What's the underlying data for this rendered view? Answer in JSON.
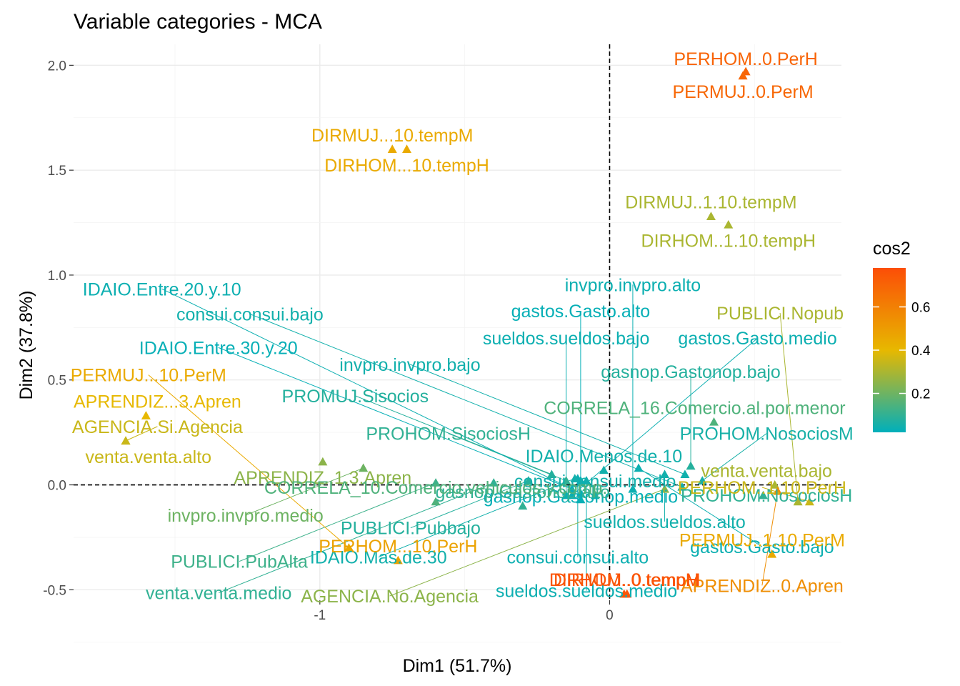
{
  "chart_data": {
    "type": "scatter",
    "title": "Variable categories - MCA",
    "xlabel": "Dim1 (51.7%)",
    "ylabel": "Dim2 (37.8%)",
    "xlim": [
      -1.85,
      0.8
    ],
    "ylim": [
      -0.55,
      2.1
    ],
    "x_ticks": [
      -1,
      0
    ],
    "y_ticks": [
      -0.5,
      0.0,
      0.5,
      1.0,
      1.5,
      2.0
    ],
    "reference_lines": {
      "x": 0,
      "y": 0
    },
    "grid": true,
    "legend": {
      "title": "cos2",
      "placement": "right",
      "range": [
        0.02,
        0.78
      ],
      "ticks": [
        0.2,
        0.4,
        0.6
      ],
      "colors": [
        "#00AFBB",
        "#E7B800",
        "#FC4E07"
      ]
    },
    "points": [
      {
        "label": "PERHOM..0.PerH",
        "x": 0.47,
        "y": 1.97,
        "cos2": 0.7
      },
      {
        "label": "PERMUJ..0.PerM",
        "x": 0.46,
        "y": 1.95,
        "cos2": 0.69
      },
      {
        "label": "DIRMUJ...10.tempM",
        "x": -0.75,
        "y": 1.6,
        "cos2": 0.45
      },
      {
        "label": "DIRHOM...10.tempH",
        "x": -0.7,
        "y": 1.6,
        "cos2": 0.45
      },
      {
        "label": "DIRMUJ..1.10.tempM",
        "x": 0.35,
        "y": 1.28,
        "cos2": 0.3
      },
      {
        "label": "DIRHOM..1.10.tempH",
        "x": 0.41,
        "y": 1.24,
        "cos2": 0.3
      },
      {
        "label": "IDAIO.Menos.de.10",
        "x": -0.02,
        "y": 0.07,
        "cos2": 0.05
      },
      {
        "label": "CORRELA_16.Comercio.al.por.menor",
        "x": 0.36,
        "y": 0.3,
        "cos2": 0.15
      },
      {
        "label": "gasnop.Gastonop.medio",
        "x": -0.1,
        "y": 0.02,
        "cos2": 0.03
      },
      {
        "label": "sueldos.sueldos.alto",
        "x": 0.19,
        "y": 0.05,
        "cos2": 0.05
      },
      {
        "label": "PROHOM.SisociosH",
        "x": -0.15,
        "y": 0.02,
        "cos2": 0.1
      },
      {
        "label": "venta.venta.bajo",
        "x": 0.57,
        "y": 0.0,
        "cos2": 0.3
      },
      {
        "label": "APRENDIZ...3.Apren",
        "x": -1.6,
        "y": 0.33,
        "cos2": 0.4
      },
      {
        "label": "PUBLICI.Pubbajo",
        "x": -0.28,
        "y": 0.02,
        "cos2": 0.08
      },
      {
        "label": "consui.consui.alto",
        "x": -0.11,
        "y": 0.03,
        "cos2": 0.04
      },
      {
        "label": "gasnop.Gastonop.bajo",
        "x": 0.28,
        "y": 0.09,
        "cos2": 0.08
      },
      {
        "label": "AGENCIA.Si.Agencia",
        "x": -1.67,
        "y": 0.21,
        "cos2": 0.35
      },
      {
        "label": "APRENDIZ..1.3.Apren",
        "x": -0.99,
        "y": 0.11,
        "cos2": 0.25
      },
      {
        "label": "PROMUJ.Sisocios",
        "x": -0.2,
        "y": 0.05,
        "cos2": 0.08
      },
      {
        "label": "gastos.Gasto.bajo",
        "x": 0.1,
        "y": 0.08,
        "cos2": 0.04
      },
      {
        "label": "venta.venta.alto",
        "x": -1.67,
        "y": 0.21,
        "cos2": 0.35
      },
      {
        "label": "IDAIO.Mas.de.30",
        "x": -0.12,
        "y": 0.03,
        "cos2": 0.05
      },
      {
        "label": "sueldos.sueldos.medio",
        "x": -0.08,
        "y": 0.02,
        "cos2": 0.04
      },
      {
        "label": "invpro.invpro.bajo",
        "x": 0.26,
        "y": 0.05,
        "cos2": 0.05
      },
      {
        "label": "PROHOM.NosociosM",
        "x": 0.32,
        "y": 0.02,
        "cos2": 0.06
      },
      {
        "label": "PUBLICI.PubAlta",
        "x": -0.6,
        "y": 0.01,
        "cos2": 0.12
      },
      {
        "label": "venta.venta.medio",
        "x": -0.4,
        "y": 0.01,
        "cos2": 0.1
      },
      {
        "label": "IDAIO.Entre.30.y.20",
        "x": -0.13,
        "y": -0.02,
        "cos2": 0.03
      },
      {
        "label": "PROHOM.NosociosH",
        "x": 0.53,
        "y": -0.05,
        "cos2": 0.1
      },
      {
        "label": "invpro.invpro.medio",
        "x": -0.85,
        "y": 0.08,
        "cos2": 0.2
      },
      {
        "label": "sueldos.sueldos.bajo",
        "x": -0.15,
        "y": -0.05,
        "cos2": 0.04
      },
      {
        "label": "AGENCIA.No.Agencia",
        "x": 0.19,
        "y": -0.02,
        "cos2": 0.25
      },
      {
        "label": "APRENDIZ..0.Apren",
        "x": 0.58,
        "y": -0.03,
        "cos2": 0.55
      },
      {
        "label": "PERMUJ...10.PerM",
        "x": -0.9,
        "y": -0.3,
        "cos2": 0.45
      },
      {
        "label": "gastos.Gasto.medio",
        "x": -0.13,
        "y": -0.05,
        "cos2": 0.04
      },
      {
        "label": "gastos.Gasto.alto",
        "x": -0.1,
        "y": -0.07,
        "cos2": 0.03
      },
      {
        "label": "consui.consui.bajo",
        "x": 0.25,
        "y": -0.01,
        "cos2": 0.05
      },
      {
        "label": "PUBLICI.Nopub",
        "x": 0.65,
        "y": -0.08,
        "cos2": 0.3
      },
      {
        "label": "gasnop.Gastonop.alto",
        "x": -0.3,
        "y": -0.1,
        "cos2": 0.1
      },
      {
        "label": "consui.consui.medio",
        "x": -0.05,
        "y": -0.05,
        "cos2": 0.05
      },
      {
        "label": "IDAIO.Entre.20.y.10",
        "x": -0.1,
        "y": -0.04,
        "cos2": 0.04
      },
      {
        "label": "invpro.invpro.alto",
        "x": 0.08,
        "y": -0.02,
        "cos2": 0.04
      },
      {
        "label": "PERHOM..1.10.PerH",
        "x": 0.69,
        "y": -0.08,
        "cos2": 0.35
      },
      {
        "label": "PERHOM...10.PerH",
        "x": -0.73,
        "y": -0.36,
        "cos2": 0.48
      },
      {
        "label": "CORRELA_10.Comercio.vehiculos.y.comp.",
        "x": -0.6,
        "y": -0.08,
        "cos2": 0.15
      },
      {
        "label": "DIRHOM..0.tempH",
        "x": 0.05,
        "y": -0.52,
        "cos2": 0.75
      },
      {
        "label": "DIRMUJ..0.tempM",
        "x": 0.06,
        "y": -0.52,
        "cos2": 0.76
      },
      {
        "label": "PERMUJ..1.10.PerM",
        "x": 0.56,
        "y": -0.33,
        "cos2": 0.45
      }
    ]
  }
}
